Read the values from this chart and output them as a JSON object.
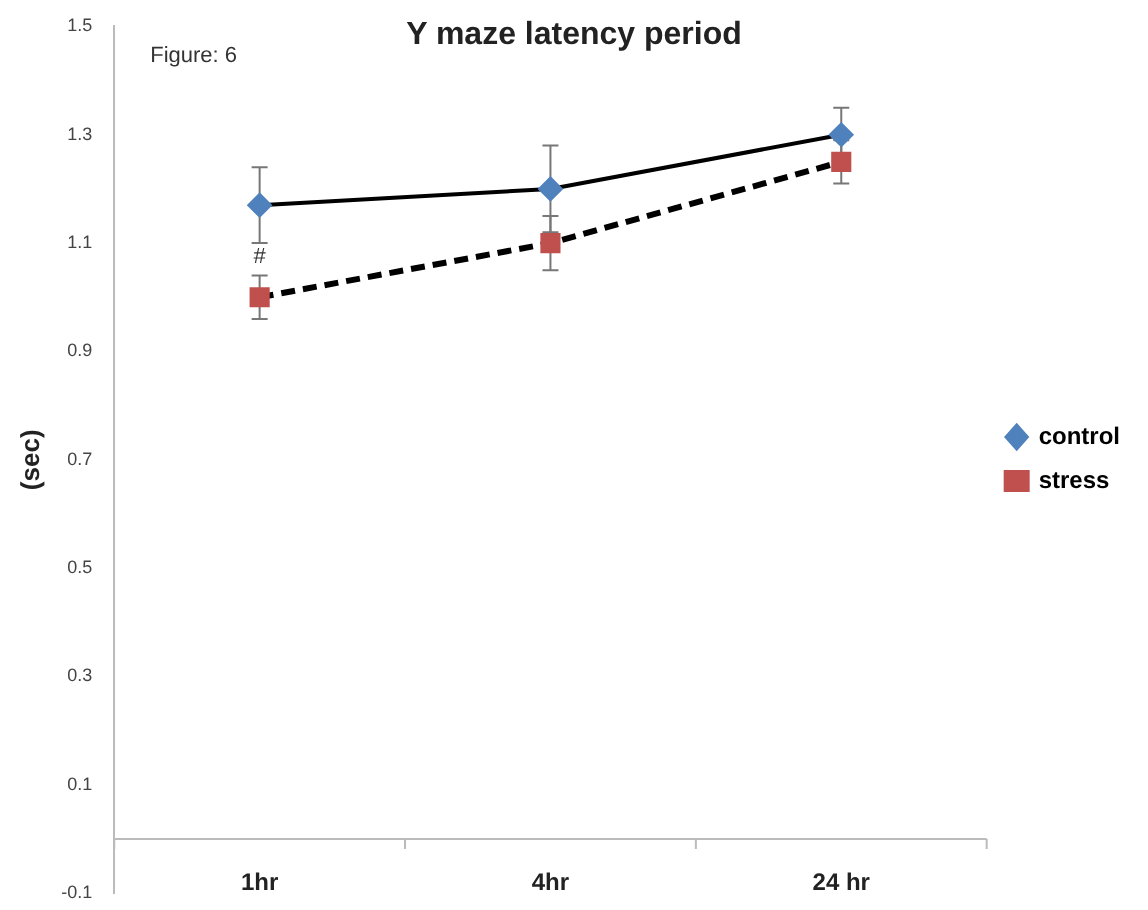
{
  "chart_data": {
    "type": "line",
    "title": "Y maze latency period",
    "ylabel": "(sec)",
    "categories": [
      "1hr",
      "4hr",
      "24 hr"
    ],
    "series": [
      {
        "name": "control",
        "color": "#000000",
        "marker": "diamond",
        "line_style": "solid",
        "values": [
          1.17,
          1.2,
          1.3
        ],
        "errors": [
          0.07,
          0.08,
          0.05
        ]
      },
      {
        "name": "stress",
        "color": "#000000",
        "marker": "square",
        "line_style": "dashed",
        "values": [
          1.0,
          1.1,
          1.25
        ],
        "errors": [
          0.04,
          0.05,
          0.04
        ]
      }
    ],
    "ylim": [
      -0.1,
      1.5
    ],
    "yticks": [
      -0.1,
      0.1,
      0.3,
      0.5,
      0.7,
      0.9,
      1.1,
      1.3,
      1.5
    ],
    "grid": false,
    "legend": "right",
    "annotations": [
      "Figure: 6",
      "#"
    ]
  }
}
